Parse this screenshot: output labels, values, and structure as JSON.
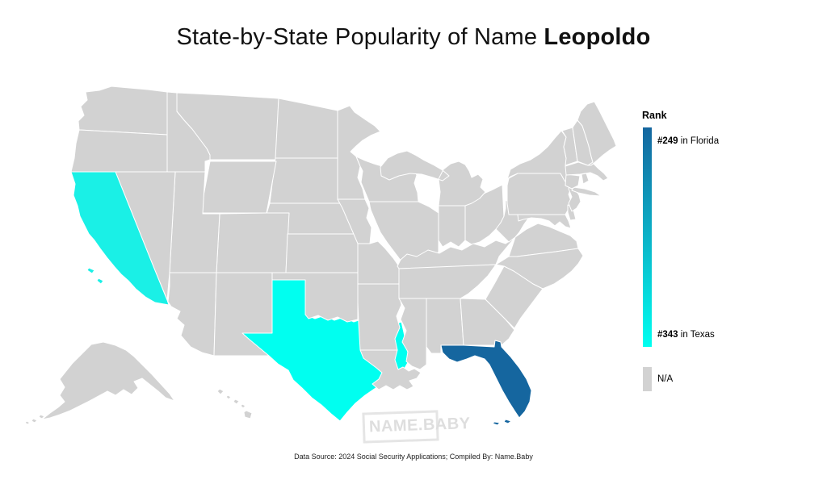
{
  "title": {
    "prefix": "State-by-State Popularity of Name ",
    "name": "Leopoldo"
  },
  "legend": {
    "heading": "Rank",
    "max": {
      "rank": "#249",
      "rest": " in Florida"
    },
    "min": {
      "rank": "#343",
      "rest": " in Texas"
    },
    "na_label": "N/A"
  },
  "colors": {
    "scale_top": "#15669F",
    "scale_bottom": "#00FFF0",
    "na": "#D2D2D2",
    "state_border": "#FFFFFF"
  },
  "map_data": {
    "type": "choropleth",
    "scope": "USA states",
    "highlighted_states": [
      {
        "state": "Florida",
        "abbr": "FL",
        "rank": 249,
        "color": "#15669F"
      },
      {
        "state": "Texas",
        "abbr": "TX",
        "rank": 343,
        "color": "#00FFF0"
      },
      {
        "state": "California",
        "abbr": "CA",
        "color": "#1AF0E6"
      }
    ],
    "other_states_value": "N/A"
  },
  "watermark": {
    "text": "NAME.BABY"
  },
  "footer": {
    "text": "Data Source: 2024 Social Security Applications; Compiled By: Name.Baby"
  }
}
